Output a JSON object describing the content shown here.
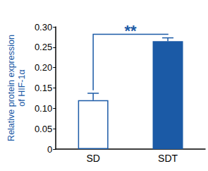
{
  "chart_data": {
    "type": "bar",
    "y_label": "Relative protein expression\nof HIF-1α",
    "categories": [
      "SD",
      "SDT"
    ],
    "values": [
      0.12,
      0.265
    ],
    "errors": [
      0.017,
      0.008
    ],
    "colors": [
      "#ffffff",
      "#1b5aa6"
    ],
    "ylim": [
      0,
      0.3
    ],
    "yticks": [
      0,
      {
        "value": 0.05,
        "label": "0.05"
      },
      {
        "value": 0.1,
        "label": "0.10"
      },
      {
        "value": 0.15,
        "label": "0.15"
      },
      {
        "value": 0.2,
        "label": "0.20"
      },
      {
        "value": 0.25,
        "label": "0.25"
      },
      {
        "value": 0.3,
        "label": "0.30"
      }
    ],
    "grid": false,
    "annotations": [
      {
        "text": "**",
        "from": "SD",
        "to": "SDT"
      }
    ]
  }
}
